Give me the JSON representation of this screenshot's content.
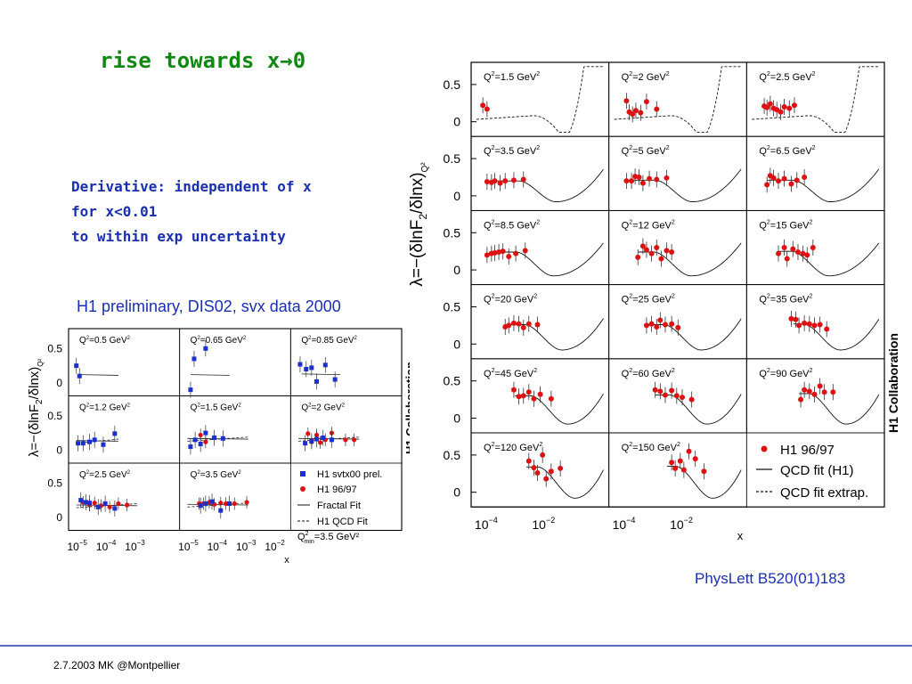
{
  "slide": {
    "title": "rise towards x",
    "title_arrow": "→",
    "title_end": "0",
    "notes": [
      "Derivative: independent of x",
      "for x<0.01",
      "to within exp uncertainty"
    ],
    "subtitle": "H1 preliminary, DIS02, svx data 2000",
    "reference": "PhysLett B520(01)183",
    "footer": "2.7.2003 MK @Montpellier"
  },
  "chart_data": [
    {
      "type": "scatter",
      "collaboration_label": "H1 Collaboration",
      "ylabel_main": "λ=−(δlnF",
      "ylabel_sub": "2",
      "ylabel_mid": "/δlnx)",
      "ylabel_sub2": "Q²",
      "xlabel": "x",
      "x_tick_labels": [
        "10",
        "10"
      ],
      "x_tick_exponents": [
        "−4",
        "−2"
      ],
      "y_tick_labels": [
        "0.5",
        "0"
      ],
      "ylim": [
        -0.15,
        0.75
      ],
      "xlim": [
        3e-05,
        0.8
      ],
      "legend_position": "bottom-right",
      "legend": [
        {
          "label": "H1 96/97",
          "marker": "red-dot"
        },
        {
          "label": "QCD fit (H1)",
          "marker": "solid-line"
        },
        {
          "label": "QCD fit extrap.",
          "marker": "dashed-line"
        }
      ],
      "colors": {
        "data": "#dd1111",
        "fit": "#111111"
      },
      "panels": [
        {
          "q2": "1.5",
          "x": [
            5e-05,
            7e-05
          ],
          "y": [
            0.22,
            0.17
          ],
          "fit": "extrap"
        },
        {
          "q2": "2",
          "x": [
            8e-05,
            0.0001,
            0.00013,
            0.00017,
            0.00025,
            0.0004,
            0.0009
          ],
          "y": [
            0.28,
            0.13,
            0.1,
            0.15,
            0.12,
            0.27,
            0.17
          ],
          "fit": "extrap"
        },
        {
          "q2": "2.5",
          "x": [
            8e-05,
            0.0001,
            0.00013,
            0.00017,
            0.00022,
            0.0003,
            0.0004,
            0.0006,
            0.0009
          ],
          "y": [
            0.21,
            0.19,
            0.24,
            0.18,
            0.16,
            0.13,
            0.2,
            0.18,
            0.22
          ],
          "fit": "extrap"
        },
        {
          "q2": "3.5",
          "x": [
            7e-05,
            0.0001,
            0.00013,
            0.0002,
            0.0003,
            0.0006,
            0.0013
          ],
          "y": [
            0.19,
            0.18,
            0.2,
            0.17,
            0.2,
            0.21,
            0.22
          ],
          "fit": "qcd"
        },
        {
          "q2": "5",
          "x": [
            8e-05,
            0.00012,
            0.00016,
            0.00022,
            0.0003,
            0.0005,
            0.0009,
            0.002
          ],
          "y": [
            0.2,
            0.2,
            0.26,
            0.25,
            0.17,
            0.23,
            0.22,
            0.24
          ],
          "fit": "qcd"
        },
        {
          "q2": "6.5",
          "x": [
            0.0001,
            0.00013,
            0.00017,
            0.00025,
            0.0004,
            0.0007,
            0.0011,
            0.002
          ],
          "y": [
            0.15,
            0.27,
            0.24,
            0.2,
            0.23,
            0.16,
            0.21,
            0.25
          ],
          "fit": "qcd"
        },
        {
          "q2": "8.5",
          "x": [
            7e-05,
            0.0001,
            0.00013,
            0.00018,
            0.00025,
            0.0004,
            0.0007,
            0.0015
          ],
          "y": [
            0.2,
            0.22,
            0.23,
            0.24,
            0.25,
            0.18,
            0.22,
            0.26
          ],
          "fit": "qcd"
        },
        {
          "q2": "12",
          "x": [
            0.0002,
            0.0003,
            0.0004,
            0.0006,
            0.0009,
            0.0013,
            0.002,
            0.003
          ],
          "y": [
            0.17,
            0.32,
            0.27,
            0.22,
            0.3,
            0.15,
            0.26,
            0.24
          ],
          "fit": "qcd"
        },
        {
          "q2": "15",
          "x": [
            0.00025,
            0.0004,
            0.0005,
            0.0008,
            0.0012,
            0.0018,
            0.0025,
            0.004
          ],
          "y": [
            0.22,
            0.3,
            0.15,
            0.28,
            0.24,
            0.22,
            0.2,
            0.3
          ],
          "fit": "qcd"
        },
        {
          "q2": "20",
          "x": [
            0.0003,
            0.0004,
            0.0006,
            0.0009,
            0.0013,
            0.002,
            0.004
          ],
          "y": [
            0.23,
            0.25,
            0.28,
            0.27,
            0.22,
            0.27,
            0.26
          ],
          "fit": "qcd"
        },
        {
          "q2": "25",
          "x": [
            0.0004,
            0.0006,
            0.0009,
            0.0012,
            0.0018,
            0.003,
            0.005
          ],
          "y": [
            0.25,
            0.27,
            0.23,
            0.32,
            0.26,
            0.27,
            0.22
          ],
          "fit": "qcd"
        },
        {
          "q2": "35",
          "x": [
            0.0007,
            0.001,
            0.0013,
            0.002,
            0.003,
            0.0045,
            0.007,
            0.012
          ],
          "y": [
            0.34,
            0.33,
            0.25,
            0.28,
            0.27,
            0.25,
            0.26,
            0.2
          ],
          "fit": "qcd"
        },
        {
          "q2": "45",
          "x": [
            0.0006,
            0.0009,
            0.0013,
            0.002,
            0.003,
            0.005,
            0.012
          ],
          "y": [
            0.38,
            0.29,
            0.3,
            0.35,
            0.26,
            0.32,
            0.26
          ],
          "fit": "qcd"
        },
        {
          "q2": "60",
          "x": [
            0.0008,
            0.0012,
            0.0018,
            0.003,
            0.0045,
            0.007,
            0.015
          ],
          "y": [
            0.38,
            0.36,
            0.31,
            0.37,
            0.3,
            0.28,
            0.25
          ],
          "fit": "qcd"
        },
        {
          "q2": "90",
          "x": [
            0.0015,
            0.002,
            0.003,
            0.0045,
            0.007,
            0.01,
            0.02
          ],
          "y": [
            0.25,
            0.38,
            0.36,
            0.32,
            0.43,
            0.35,
            0.35
          ],
          "fit": "qcd"
        },
        {
          "q2": "120",
          "x": [
            0.002,
            0.003,
            0.004,
            0.006,
            0.008,
            0.012,
            0.025
          ],
          "y": [
            0.42,
            0.33,
            0.26,
            0.5,
            0.18,
            0.28,
            0.32
          ],
          "fit": "qcd"
        },
        {
          "q2": "150",
          "x": [
            0.003,
            0.004,
            0.006,
            0.008,
            0.012,
            0.02,
            0.04
          ],
          "y": [
            0.4,
            0.32,
            0.42,
            0.3,
            0.55,
            0.45,
            0.28
          ],
          "fit": "qcd"
        }
      ]
    },
    {
      "type": "scatter",
      "collaboration_label": "H1 Collaboration",
      "ylabel_main": "λ=−(δlnF",
      "ylabel_sub": "2",
      "ylabel_mid": "/δlnx)",
      "ylabel_sub2": "Q²",
      "xlabel": "x",
      "x_tick_labels": [
        "10",
        "10",
        "10",
        "10"
      ],
      "x_tick_exponents": [
        "−5",
        "−4",
        "−3",
        "−2"
      ],
      "y_tick_labels": [
        "0.5",
        "0"
      ],
      "ylim": [
        -0.15,
        0.75
      ],
      "xlim": [
        5e-06,
        0.02
      ],
      "legend_position": "bottom-right",
      "legend": [
        {
          "label": "H1 svtx00 prel.",
          "marker": "blue-square"
        },
        {
          "label": "H1 96/97",
          "marker": "red-dot"
        },
        {
          "label": "Fractal Fit",
          "marker": "solid-line"
        },
        {
          "label": "H1 QCD Fit",
          "marker": "dashed-line"
        },
        {
          "label": "Q",
          "marker": "none",
          "sub": "min",
          "sup": "2",
          "suffix": "=3.5 GeV²"
        }
      ],
      "colors": {
        "svtx": "#1a2fcc",
        "h1": "#dd1111"
      },
      "panels": [
        {
          "q2": "0.5",
          "svtx": {
            "x": [
              7e-06,
              9e-06
            ],
            "y": [
              0.25,
              0.1
            ]
          },
          "h1": {
            "x": [],
            "y": []
          }
        },
        {
          "q2": "0.65",
          "svtx": {
            "x": [
              9e-06,
              1.2e-05,
              3e-05
            ],
            "y": [
              -0.1,
              0.35,
              0.5
            ]
          },
          "h1": {
            "x": [],
            "y": []
          }
        },
        {
          "q2": "0.85",
          "svtx": {
            "x": [
              8e-06,
              1.3e-05,
              2e-05,
              3e-05,
              6e-05,
              0.00013
            ],
            "y": [
              0.27,
              0.2,
              0.22,
              0.02,
              0.26,
              0.05
            ]
          },
          "h1": {
            "x": [],
            "y": []
          }
        },
        {
          "q2": "1.2",
          "svtx": {
            "x": [
              8e-06,
              1.2e-05,
              2e-05,
              3e-05,
              6e-05,
              0.00015
            ],
            "y": [
              0.1,
              0.1,
              0.12,
              0.15,
              0.08,
              0.24
            ]
          },
          "h1": {
            "x": [],
            "y": []
          }
        },
        {
          "q2": "1.5",
          "svtx": {
            "x": [
              9e-06,
              1.3e-05,
              2e-05,
              3e-05,
              6e-05,
              0.00012
            ],
            "y": [
              0.05,
              0.15,
              0.09,
              0.25,
              0.18,
              0.17
            ]
          },
          "h1": {
            "x": [
              2e-05,
              3e-05
            ],
            "y": [
              0.22,
              0.12
            ]
          }
        },
        {
          "q2": "2",
          "svtx": {
            "x": [
              1.2e-05,
              2e-05,
              3e-05,
              5e-05,
              0.0001
            ],
            "y": [
              0.1,
              0.13,
              0.16,
              0.18,
              0.15
            ]
          },
          "h1": {
            "x": [
              1.5e-05,
              2e-05,
              3e-05,
              4e-05,
              6e-05,
              0.0001,
              0.0003,
              0.0006
            ],
            "y": [
              0.24,
              0.12,
              0.22,
              0.11,
              0.15,
              0.25,
              0.15,
              0.15
            ]
          }
        },
        {
          "q2": "2.5",
          "svtx": {
            "x": [
              1e-05,
              1.5e-05,
              2e-05,
              4e-05,
              7e-05,
              0.00015
            ],
            "y": [
              0.25,
              0.22,
              0.21,
              0.15,
              0.2,
              0.13
            ]
          },
          "h1": {
            "x": [
              1.2e-05,
              2e-05,
              3e-05,
              5e-05,
              0.0001,
              0.0002,
              0.0004
            ],
            "y": [
              0.22,
              0.18,
              0.21,
              0.17,
              0.15,
              0.2,
              0.18
            ]
          }
        },
        {
          "q2": "3.5",
          "svtx": {
            "x": [
              2e-05,
              3e-05,
              5e-05,
              0.0001,
              0.0002
            ],
            "y": [
              0.17,
              0.2,
              0.23,
              0.1,
              0.2
            ]
          },
          "h1": {
            "x": [
              1.8e-05,
              2.5e-05,
              4e-05,
              6e-05,
              0.0001,
              0.00015,
              0.0003,
              0.0008
            ],
            "y": [
              0.2,
              0.2,
              0.22,
              0.19,
              0.21,
              0.2,
              0.2,
              0.22
            ]
          }
        }
      ]
    }
  ]
}
